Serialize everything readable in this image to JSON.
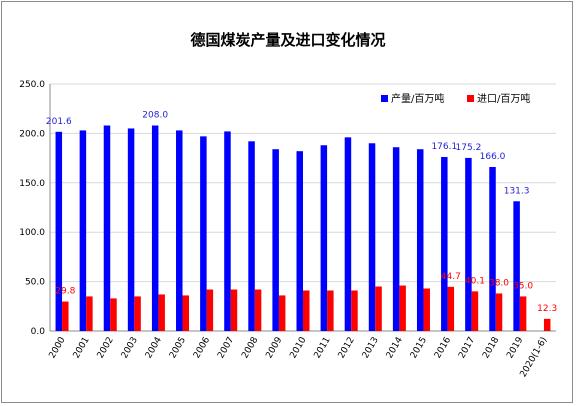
{
  "chart_data": {
    "type": "bar",
    "title": "德国煤炭产量及进口变化情况",
    "xlabel": "",
    "ylabel": "",
    "ylim": [
      0,
      250
    ],
    "yticks": [
      "0.0",
      "50.0",
      "100.0",
      "150.0",
      "200.0",
      "250.0"
    ],
    "grid": true,
    "legend_position": "top-right",
    "categories": [
      "2000",
      "2001",
      "2002",
      "2003",
      "2004",
      "2005",
      "2006",
      "2007",
      "2008",
      "2009",
      "2010",
      "2011",
      "2012",
      "2013",
      "2014",
      "2015",
      "2016",
      "2017",
      "2018",
      "2019",
      "2020(1-6)"
    ],
    "series": [
      {
        "name": "产量/百万吨",
        "color": "#0000ff",
        "values": [
          201.6,
          203,
          208,
          205,
          208.0,
          203,
          197,
          202,
          192,
          184,
          182,
          188,
          196,
          190,
          186,
          184,
          176.1,
          175.2,
          166.0,
          131.3,
          null
        ]
      },
      {
        "name": "进口/百万吨",
        "color": "#ff0000",
        "values": [
          29.8,
          35,
          33,
          35,
          37,
          36,
          42,
          42,
          42,
          36,
          41,
          41,
          41,
          45,
          46,
          43,
          44.7,
          40.1,
          38.0,
          35.0,
          12.3
        ]
      }
    ],
    "data_labels": {
      "series_0": [
        "201.6",
        null,
        null,
        null,
        "208.0",
        null,
        null,
        null,
        null,
        null,
        null,
        null,
        null,
        null,
        null,
        null,
        "176.1",
        "175.2",
        "166.0",
        "131.3",
        null
      ],
      "series_1": [
        "29.8",
        null,
        null,
        null,
        null,
        null,
        null,
        null,
        null,
        null,
        null,
        null,
        null,
        null,
        null,
        null,
        "44.7",
        "40.1",
        "38.0",
        "35.0",
        "12.3"
      ]
    }
  }
}
